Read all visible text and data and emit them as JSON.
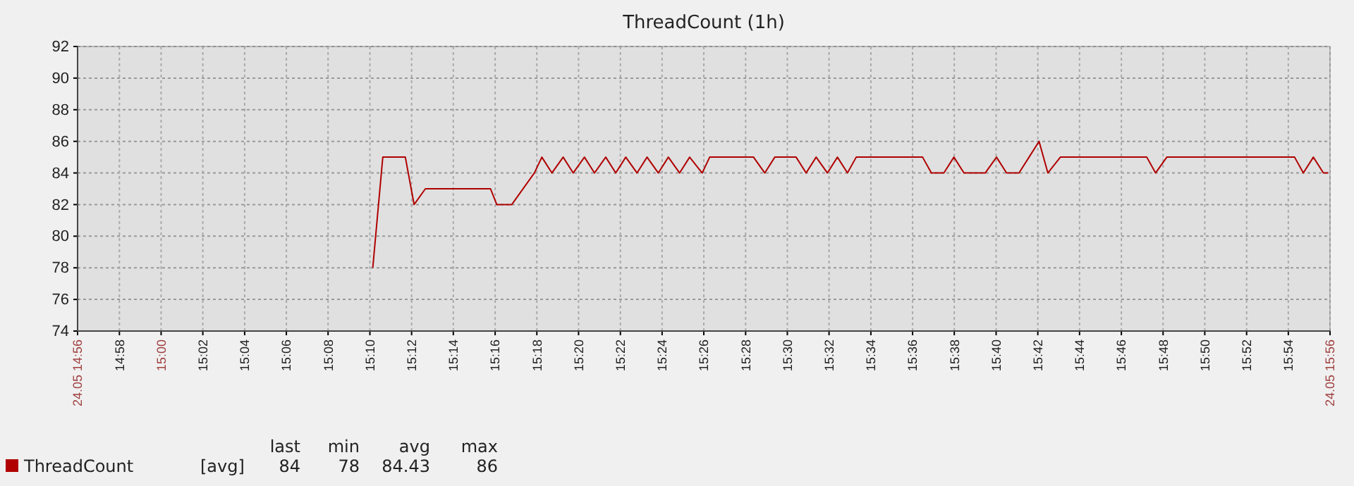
{
  "chart_data": {
    "type": "line",
    "title": "ThreadCount (1h)",
    "xlim": [
      14.9333,
      15.9333
    ],
    "xticks": [
      {
        "value": 14.9333,
        "label": "24.05 14:56"
      },
      {
        "value": 14.9667,
        "label": "14:58"
      },
      {
        "value": 15,
        "label": "15:00"
      },
      {
        "value": 15.0333,
        "label": "15:02"
      },
      {
        "value": 15.0667,
        "label": "15:04"
      },
      {
        "value": 15.1,
        "label": "15:06"
      },
      {
        "value": 15.1333,
        "label": "15:08"
      },
      {
        "value": 15.1667,
        "label": "15:10"
      },
      {
        "value": 15.2,
        "label": "15:12"
      },
      {
        "value": 15.2333,
        "label": "15:14"
      },
      {
        "value": 15.2667,
        "label": "15:16"
      },
      {
        "value": 15.3,
        "label": "15:18"
      },
      {
        "value": 15.3333,
        "label": "15:20"
      },
      {
        "value": 15.3667,
        "label": "15:22"
      },
      {
        "value": 15.4,
        "label": "15:24"
      },
      {
        "value": 15.4333,
        "label": "15:26"
      },
      {
        "value": 15.4667,
        "label": "15:28"
      },
      {
        "value": 15.5,
        "label": "15:30"
      },
      {
        "value": 15.5333,
        "label": "15:32"
      },
      {
        "value": 15.5667,
        "label": "15:34"
      },
      {
        "value": 15.6,
        "label": "15:36"
      },
      {
        "value": 15.6333,
        "label": "15:38"
      },
      {
        "value": 15.6667,
        "label": "15:40"
      },
      {
        "value": 15.7,
        "label": "15:42"
      },
      {
        "value": 15.7333,
        "label": "15:44"
      },
      {
        "value": 15.7667,
        "label": "15:46"
      },
      {
        "value": 15.8,
        "label": "15:48"
      },
      {
        "value": 15.8333,
        "label": "15:50"
      },
      {
        "value": 15.8667,
        "label": "15:52"
      },
      {
        "value": 15.9,
        "label": "15:54"
      },
      {
        "value": 15.9333,
        "label": "24.05 15:56"
      }
    ],
    "ylim": [
      74,
      92
    ],
    "yticks": [
      74,
      76,
      78,
      80,
      82,
      84,
      86,
      88,
      90,
      92
    ],
    "grid": true,
    "legend": "bottom",
    "line_style": "solid",
    "annotations": [
      "[avg]",
      "last",
      "min",
      "avg",
      "max",
      "84",
      "78",
      "84.43",
      "86"
    ],
    "series": [
      {
        "name": "ThreadCount",
        "color": "#b00000",
        "x": [
          15.169,
          15.177,
          15.195,
          15.202,
          15.211,
          15.263,
          15.268,
          15.28,
          15.298,
          15.304,
          15.312,
          15.321,
          15.329,
          15.338,
          15.346,
          15.355,
          15.363,
          15.371,
          15.38,
          15.388,
          15.397,
          15.405,
          15.414,
          15.422,
          15.432,
          15.438,
          15.473,
          15.482,
          15.49,
          15.507,
          15.515,
          15.523,
          15.532,
          15.54,
          15.548,
          15.555,
          15.608,
          15.615,
          15.625,
          15.633,
          15.641,
          15.658,
          15.667,
          15.675,
          15.685,
          15.693,
          15.701,
          15.708,
          15.718,
          15.787,
          15.794,
          15.803,
          15.905,
          15.912,
          15.92,
          15.928,
          15.932
        ],
        "values": [
          78,
          85,
          85,
          82,
          83,
          83,
          82,
          82,
          84,
          85,
          84,
          85,
          84,
          85,
          84,
          85,
          84,
          85,
          84,
          85,
          84,
          85,
          84,
          85,
          84,
          85,
          85,
          84,
          85,
          85,
          84,
          85,
          84,
          85,
          84,
          85,
          85,
          84,
          84,
          85,
          84,
          84,
          85,
          84,
          84,
          85,
          86,
          84,
          85,
          85,
          84,
          85,
          85,
          84,
          85,
          84,
          84
        ]
      }
    ]
  }
}
